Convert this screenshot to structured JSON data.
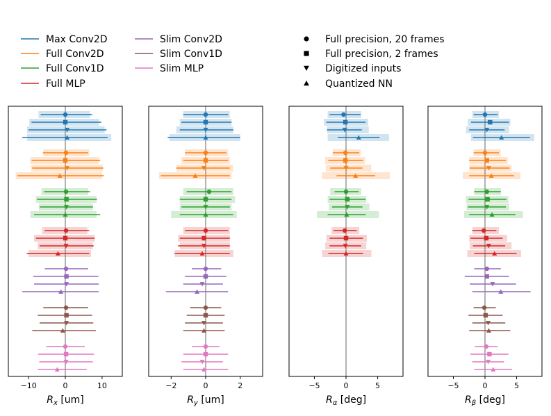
{
  "chart_data": {
    "type": "errorbar",
    "colors": {
      "Max Conv2D": "#1f77b4",
      "Full Conv2D": "#ff7f0e",
      "Full Conv1D": "#2ca02c",
      "Full MLP": "#d62728",
      "Slim Conv2D": "#9467bd",
      "Slim Conv1D": "#8c564b",
      "Slim MLP": "#e377c2"
    },
    "legend_models": {
      "col1": [
        "Max Conv2D",
        "Full Conv2D",
        "Full Conv1D",
        "Full MLP"
      ],
      "col2": [
        "Slim Conv2D",
        "Slim Conv1D",
        "Slim MLP"
      ]
    },
    "legend_markers": [
      {
        "marker": "circle",
        "label": "Full precision, 20 frames"
      },
      {
        "marker": "square",
        "label": "Full precision, 2 frames"
      },
      {
        "marker": "triangle-down",
        "label": "Digitized inputs"
      },
      {
        "marker": "triangle-up",
        "label": "Quantized NN"
      }
    ],
    "models": [
      "Max Conv2D",
      "Full Conv2D",
      "Full Conv1D",
      "Full MLP",
      "Slim Conv2D",
      "Slim Conv1D",
      "Slim MLP"
    ],
    "variants": [
      "Full precision, 20 frames",
      "Full precision, 2 frames",
      "Digitized inputs",
      "Quantized NN"
    ],
    "panels": [
      {
        "xlabel": "R_x [um]",
        "xlabel_main": "R",
        "xlabel_sub": "x",
        "xlabel_unit": " [um]",
        "xlim": [
          -15.5,
          15.5
        ],
        "xticks": [
          -10,
          0,
          10
        ],
        "xtick_labels": [
          "−10",
          "0",
          "10"
        ],
        "data": {
          "Max Conv2D": [
            [
              0.0,
              6.7,
              7.3
            ],
            [
              0.0,
              9.2,
              9.8
            ],
            [
              0.5,
              10.5,
              10.7
            ],
            [
              0.5,
              12.2,
              11.0
            ]
          ],
          "Full Conv2D": [
            [
              0.2,
              6.3,
              6.0
            ],
            [
              0.0,
              9.2,
              9.5
            ],
            [
              0.5,
              9.5,
              9.8
            ],
            [
              -1.5,
              11.5,
              12.0
            ]
          ],
          "Full Conv1D": [
            [
              0.2,
              6.0,
              6.5
            ],
            [
              0.3,
              8.0,
              8.3
            ],
            [
              0.3,
              7.2,
              7.2
            ],
            [
              0.0,
              8.5,
              9.5
            ]
          ],
          "Full MLP": [
            [
              0.2,
              5.8,
              6.3
            ],
            [
              0.0,
              8.0,
              8.0
            ],
            [
              0.2,
              7.2,
              7.5
            ],
            [
              -2.0,
              8.5,
              8.5
            ]
          ],
          "Slim Conv2D": [
            [
              0.2,
              5.8,
              6.0
            ],
            [
              0.3,
              9.0,
              8.7
            ],
            [
              0.3,
              8.8,
              8.8
            ],
            [
              -1.2,
              10.5,
              10.3
            ]
          ],
          "Slim Conv1D": [
            [
              0.2,
              6.2,
              6.0
            ],
            [
              0.3,
              7.8,
              7.0
            ],
            [
              0.3,
              7.3,
              7.3
            ],
            [
              -0.7,
              8.3,
              9.0
            ]
          ],
          "Slim MLP": [
            [
              0.0,
              5.2,
              5.3
            ],
            [
              0.2,
              7.6,
              7.6
            ],
            [
              0.2,
              7.3,
              7.3
            ],
            [
              -2.2,
              5.3,
              8.0
            ]
          ]
        },
        "bands": {
          "Max Conv2D": [
            [
              -7.3,
              6.7
            ],
            [
              -9.8,
              9.2
            ],
            [
              -10.4,
              10.7
            ],
            [
              -10.4,
              12.5
            ]
          ],
          "Full Conv2D": [
            [
              -6.0,
              6.5
            ],
            [
              -9.5,
              9.2
            ],
            [
              -9.3,
              10.2
            ],
            [
              -13.5,
              10.0
            ]
          ],
          "Full Conv1D": [
            [
              -6.5,
              6.2
            ],
            [
              -8.0,
              8.5
            ],
            [
              -7.2,
              7.5
            ],
            [
              -9.5,
              8.5
            ]
          ],
          "Full MLP": [
            [
              -6.3,
              6.0
            ],
            [
              -8.5,
              8.0
            ],
            [
              -7.5,
              7.5
            ],
            [
              -10.0,
              7.0
            ]
          ],
          "Slim Conv2D": null,
          "Slim Conv1D": null,
          "Slim MLP": null
        }
      },
      {
        "xlabel": "R_y [um]",
        "xlabel_main": "R",
        "xlabel_sub": "y",
        "xlabel_unit": " [um]",
        "xlim": [
          -3.3,
          3.3
        ],
        "xticks": [
          -2,
          0,
          2
        ],
        "xtick_labels": [
          "−2",
          "0",
          "2"
        ],
        "data": {
          "Max Conv2D": [
            [
              0.0,
              1.3,
              1.3
            ],
            [
              0.0,
              1.4,
              1.5
            ],
            [
              0.0,
              1.5,
              1.6
            ],
            [
              0.0,
              2.2,
              2.0
            ]
          ],
          "Full Conv2D": [
            [
              0.0,
              1.2,
              1.2
            ],
            [
              0.0,
              1.3,
              1.3
            ],
            [
              -0.1,
              1.6,
              1.5
            ],
            [
              -0.6,
              2.0,
              2.0
            ]
          ],
          "Full Conv1D": [
            [
              0.2,
              1.3,
              1.3
            ],
            [
              0.0,
              1.5,
              1.5
            ],
            [
              0.0,
              1.4,
              1.4
            ],
            [
              0.0,
              1.5,
              1.6
            ]
          ],
          "Full MLP": [
            [
              0.0,
              1.2,
              1.3
            ],
            [
              -0.1,
              1.4,
              1.5
            ],
            [
              -0.1,
              1.5,
              1.5
            ],
            [
              -0.2,
              1.6,
              1.6
            ]
          ],
          "Slim Conv2D": [
            [
              0.0,
              0.8,
              0.9
            ],
            [
              0.0,
              1.2,
              1.2
            ],
            [
              -0.2,
              1.1,
              1.2
            ],
            [
              -0.5,
              1.8,
              1.8
            ]
          ],
          "Slim Conv1D": [
            [
              0.0,
              0.9,
              0.9
            ],
            [
              0.0,
              1.1,
              1.1
            ],
            [
              -0.1,
              1.1,
              1.1
            ],
            [
              -0.1,
              1.2,
              1.2
            ]
          ],
          "Slim MLP": [
            [
              0.0,
              0.8,
              0.8
            ],
            [
              0.0,
              1.3,
              1.3
            ],
            [
              -0.2,
              1.2,
              1.2
            ],
            [
              -0.1,
              1.2,
              1.4
            ]
          ]
        },
        "bands": {
          "Max Conv2D": [
            [
              -1.3,
              1.4
            ],
            [
              -1.5,
              1.5
            ],
            [
              -1.7,
              1.6
            ],
            [
              -2.1,
              2.0
            ]
          ],
          "Full Conv2D": [
            [
              -1.2,
              1.3
            ],
            [
              -1.4,
              1.4
            ],
            [
              -1.7,
              1.6
            ],
            [
              -2.7,
              1.5
            ]
          ],
          "Full Conv1D": [
            [
              -1.3,
              1.6
            ],
            [
              -1.5,
              1.7
            ],
            [
              -1.5,
              1.5
            ],
            [
              -2.0,
              1.8
            ]
          ],
          "Full MLP": [
            [
              -1.3,
              1.4
            ],
            [
              -1.6,
              1.4
            ],
            [
              -1.5,
              1.4
            ],
            [
              -1.8,
              1.6
            ]
          ],
          "Slim Conv2D": null,
          "Slim Conv1D": null,
          "Slim MLP": null
        }
      },
      {
        "xlabel": "R_α [deg]",
        "xlabel_main": "R",
        "xlabel_sub": "α",
        "xlabel_unit": " [deg]",
        "xlim": [
          -9.0,
          9.0
        ],
        "xticks": [
          -5,
          0,
          5
        ],
        "xtick_labels": [
          "−5",
          "0",
          "5"
        ],
        "data": {
          "Max Conv2D": [
            [
              -0.4,
              2.2,
              2.7
            ],
            [
              -0.1,
              3.0,
              3.2
            ],
            [
              -0.2,
              2.8,
              2.7
            ],
            [
              2.0,
              3.3,
              3.3
            ]
          ],
          "Full Conv2D": [
            [
              -0.1,
              2.0,
              2.2
            ],
            [
              -0.1,
              2.7,
              2.8
            ],
            [
              0.0,
              2.5,
              2.6
            ],
            [
              1.5,
              3.0,
              3.1
            ]
          ],
          "Full Conv1D": [
            [
              0.0,
              1.8,
              2.0
            ],
            [
              0.2,
              2.8,
              2.9
            ],
            [
              0.2,
              2.4,
              2.4
            ],
            [
              0.1,
              3.0,
              3.0
            ]
          ],
          "Full MLP": [
            [
              -0.2,
              1.8,
              1.9
            ],
            [
              0.0,
              2.6,
              2.7
            ],
            [
              -0.1,
              2.5,
              2.5
            ],
            [
              0.0,
              2.8,
              2.7
            ]
          ],
          "Slim Conv2D": null,
          "Slim Conv1D": null,
          "Slim MLP": null
        },
        "bands": {
          "Max Conv2D": [
            [
              -2.9,
              2.4
            ],
            [
              -3.5,
              3.5
            ],
            [
              -3.0,
              3.6
            ],
            [
              -2.9,
              6.8
            ]
          ],
          "Full Conv2D": [
            [
              -2.1,
              2.3
            ],
            [
              -3.3,
              3.0
            ],
            [
              -3.2,
              4.0
            ],
            [
              -3.8,
              6.9
            ]
          ],
          "Full Conv1D": [
            [
              -2.5,
              2.4
            ],
            [
              -2.9,
              3.2
            ],
            [
              -2.7,
              3.7
            ],
            [
              -4.6,
              5.2
            ]
          ],
          "Full MLP": [
            [
              -2.3,
              2.1
            ],
            [
              -3.1,
              3.3
            ],
            [
              -3.3,
              3.2
            ],
            [
              -3.8,
              4.0
            ]
          ],
          "Slim Conv2D": null,
          "Slim Conv1D": null,
          "Slim MLP": null
        }
      },
      {
        "xlabel": "R_β [deg]",
        "xlabel_main": "R",
        "xlabel_sub": "β",
        "xlabel_unit": " [deg]",
        "xlim": [
          -9.0,
          9.0
        ],
        "xticks": [
          -5,
          0,
          5
        ],
        "xtick_labels": [
          "−5",
          "0",
          "5"
        ],
        "data": {
          "Max Conv2D": [
            [
              0.0,
              1.8,
              2.0
            ],
            [
              0.8,
              3.0,
              3.0
            ],
            [
              0.3,
              2.8,
              2.8
            ],
            [
              2.6,
              4.5,
              4.5
            ]
          ],
          "Full Conv2D": [
            [
              0.0,
              1.8,
              2.2
            ],
            [
              0.3,
              2.8,
              3.0
            ],
            [
              0.6,
              3.0,
              3.3
            ],
            [
              1.0,
              3.5,
              3.6
            ]
          ],
          "Full Conv1D": [
            [
              0.3,
              2.0,
              2.2
            ],
            [
              0.4,
              3.0,
              3.0
            ],
            [
              0.3,
              3.0,
              3.0
            ],
            [
              1.1,
              3.6,
              3.7
            ]
          ],
          "Full MLP": [
            [
              -0.2,
              1.8,
              2.0
            ],
            [
              0.2,
              2.5,
              2.6
            ],
            [
              0.6,
              2.5,
              2.6
            ],
            [
              1.5,
              3.2,
              3.5
            ]
          ],
          "Slim Conv2D": [
            [
              0.3,
              2.0,
              2.2
            ],
            [
              0.3,
              3.5,
              3.5
            ],
            [
              1.2,
              3.6,
              3.7
            ],
            [
              2.5,
              4.5,
              4.7
            ]
          ],
          "Slim Conv1D": [
            [
              -0.1,
              1.7,
              1.8
            ],
            [
              0.1,
              2.7,
              2.7
            ],
            [
              0.5,
              2.5,
              2.7
            ],
            [
              0.6,
              3.1,
              3.4
            ]
          ],
          "Slim MLP": [
            [
              0.2,
              1.8,
              1.8
            ],
            [
              0.7,
              3.0,
              3.0
            ],
            [
              0.5,
              2.5,
              2.5
            ],
            [
              1.3,
              3.0,
              3.0
            ]
          ]
        },
        "bands": {
          "Max Conv2D": [
            [
              -2.0,
              2.2
            ],
            [
              -2.7,
              4.0
            ],
            [
              -3.0,
              3.8
            ],
            [
              -2.2,
              7.8
            ]
          ],
          "Full Conv2D": [
            [
              -1.8,
              2.5
            ],
            [
              -2.5,
              3.6
            ],
            [
              -2.5,
              4.2
            ],
            [
              -3.5,
              5.6
            ]
          ],
          "Full Conv1D": [
            [
              -1.7,
              2.5
            ],
            [
              -3.0,
              3.7
            ],
            [
              -2.9,
              3.8
            ],
            [
              -3.3,
              6.0
            ]
          ],
          "Full MLP": [
            [
              -2.0,
              2.2
            ],
            [
              -2.5,
              3.5
            ],
            [
              -2.4,
              4.2
            ],
            [
              -2.8,
              5.7
            ]
          ],
          "Slim Conv2D": null,
          "Slim Conv1D": null,
          "Slim MLP": null
        }
      }
    ]
  }
}
